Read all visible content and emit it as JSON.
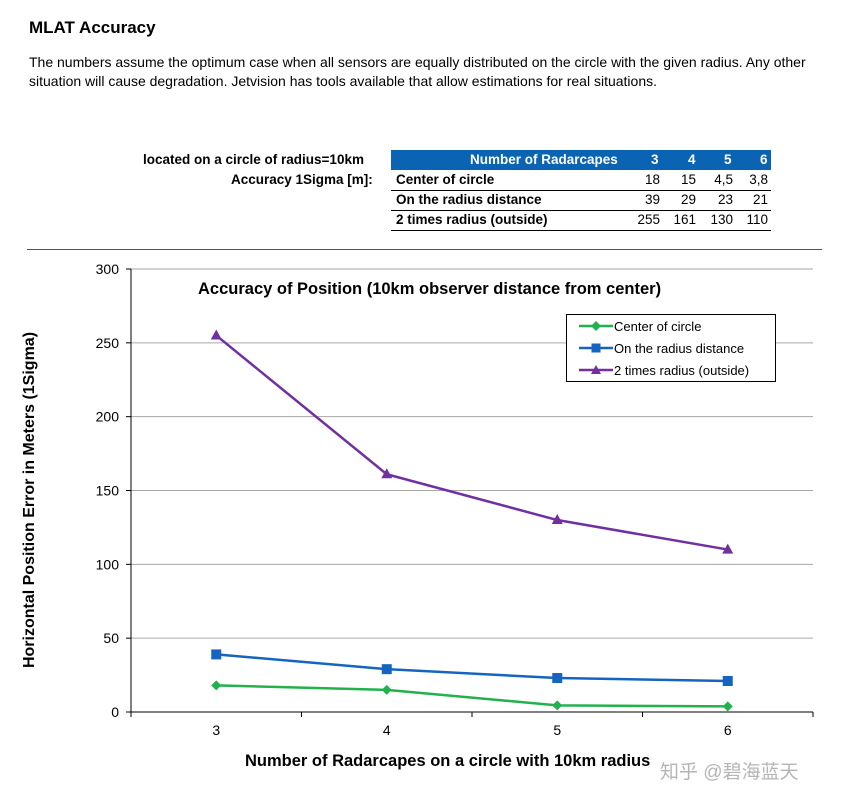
{
  "page": {
    "title": "MLAT Accuracy",
    "intro": "The numbers assume the optimum case when all sensors are equally distributed on the circle with the given radius. Any other situation will cause degradation. Jetvision has tools available that allow estimations for real situations."
  },
  "table": {
    "left_header": "located on a circle of radius=10km",
    "row_label": "Accuracy 1Sigma [m]:",
    "col_header": "Number of Radarcapes",
    "columns": [
      "3",
      "4",
      "5",
      "6"
    ],
    "rows": [
      {
        "label": "Center of circle",
        "values": [
          "18",
          "15",
          "4,5",
          "3,8"
        ]
      },
      {
        "label": "On the radius distance",
        "values": [
          "39",
          "29",
          "23",
          "21"
        ]
      },
      {
        "label": "2 times radius (outside)",
        "values": [
          "255",
          "161",
          "130",
          "110"
        ]
      }
    ]
  },
  "chart_data": {
    "type": "line",
    "title": "Accuracy of Position (10km observer distance from center)",
    "xlabel": "Number of Radarcapes on a circle with 10km radius",
    "ylabel": "Horizontal Position Error in Meters (1Sigma)",
    "categories": [
      "3",
      "4",
      "5",
      "6"
    ],
    "ylim": [
      0,
      300
    ],
    "yticks": [
      "0",
      "50",
      "100",
      "150",
      "200",
      "250",
      "300"
    ],
    "grid": true,
    "legend_position": "top-right",
    "series": [
      {
        "name": "Center of circle",
        "values": [
          18,
          15,
          4.5,
          3.8
        ],
        "color": "#22b14c",
        "marker": "diamond"
      },
      {
        "name": "On the radius distance",
        "values": [
          39,
          29,
          23,
          21
        ],
        "color": "#1565c0",
        "marker": "square"
      },
      {
        "name": "2 times radius (outside)",
        "values": [
          255,
          161,
          130,
          110
        ],
        "color": "#7030a0",
        "marker": "triangle"
      }
    ]
  },
  "watermark": "知乎 @碧海蓝天"
}
